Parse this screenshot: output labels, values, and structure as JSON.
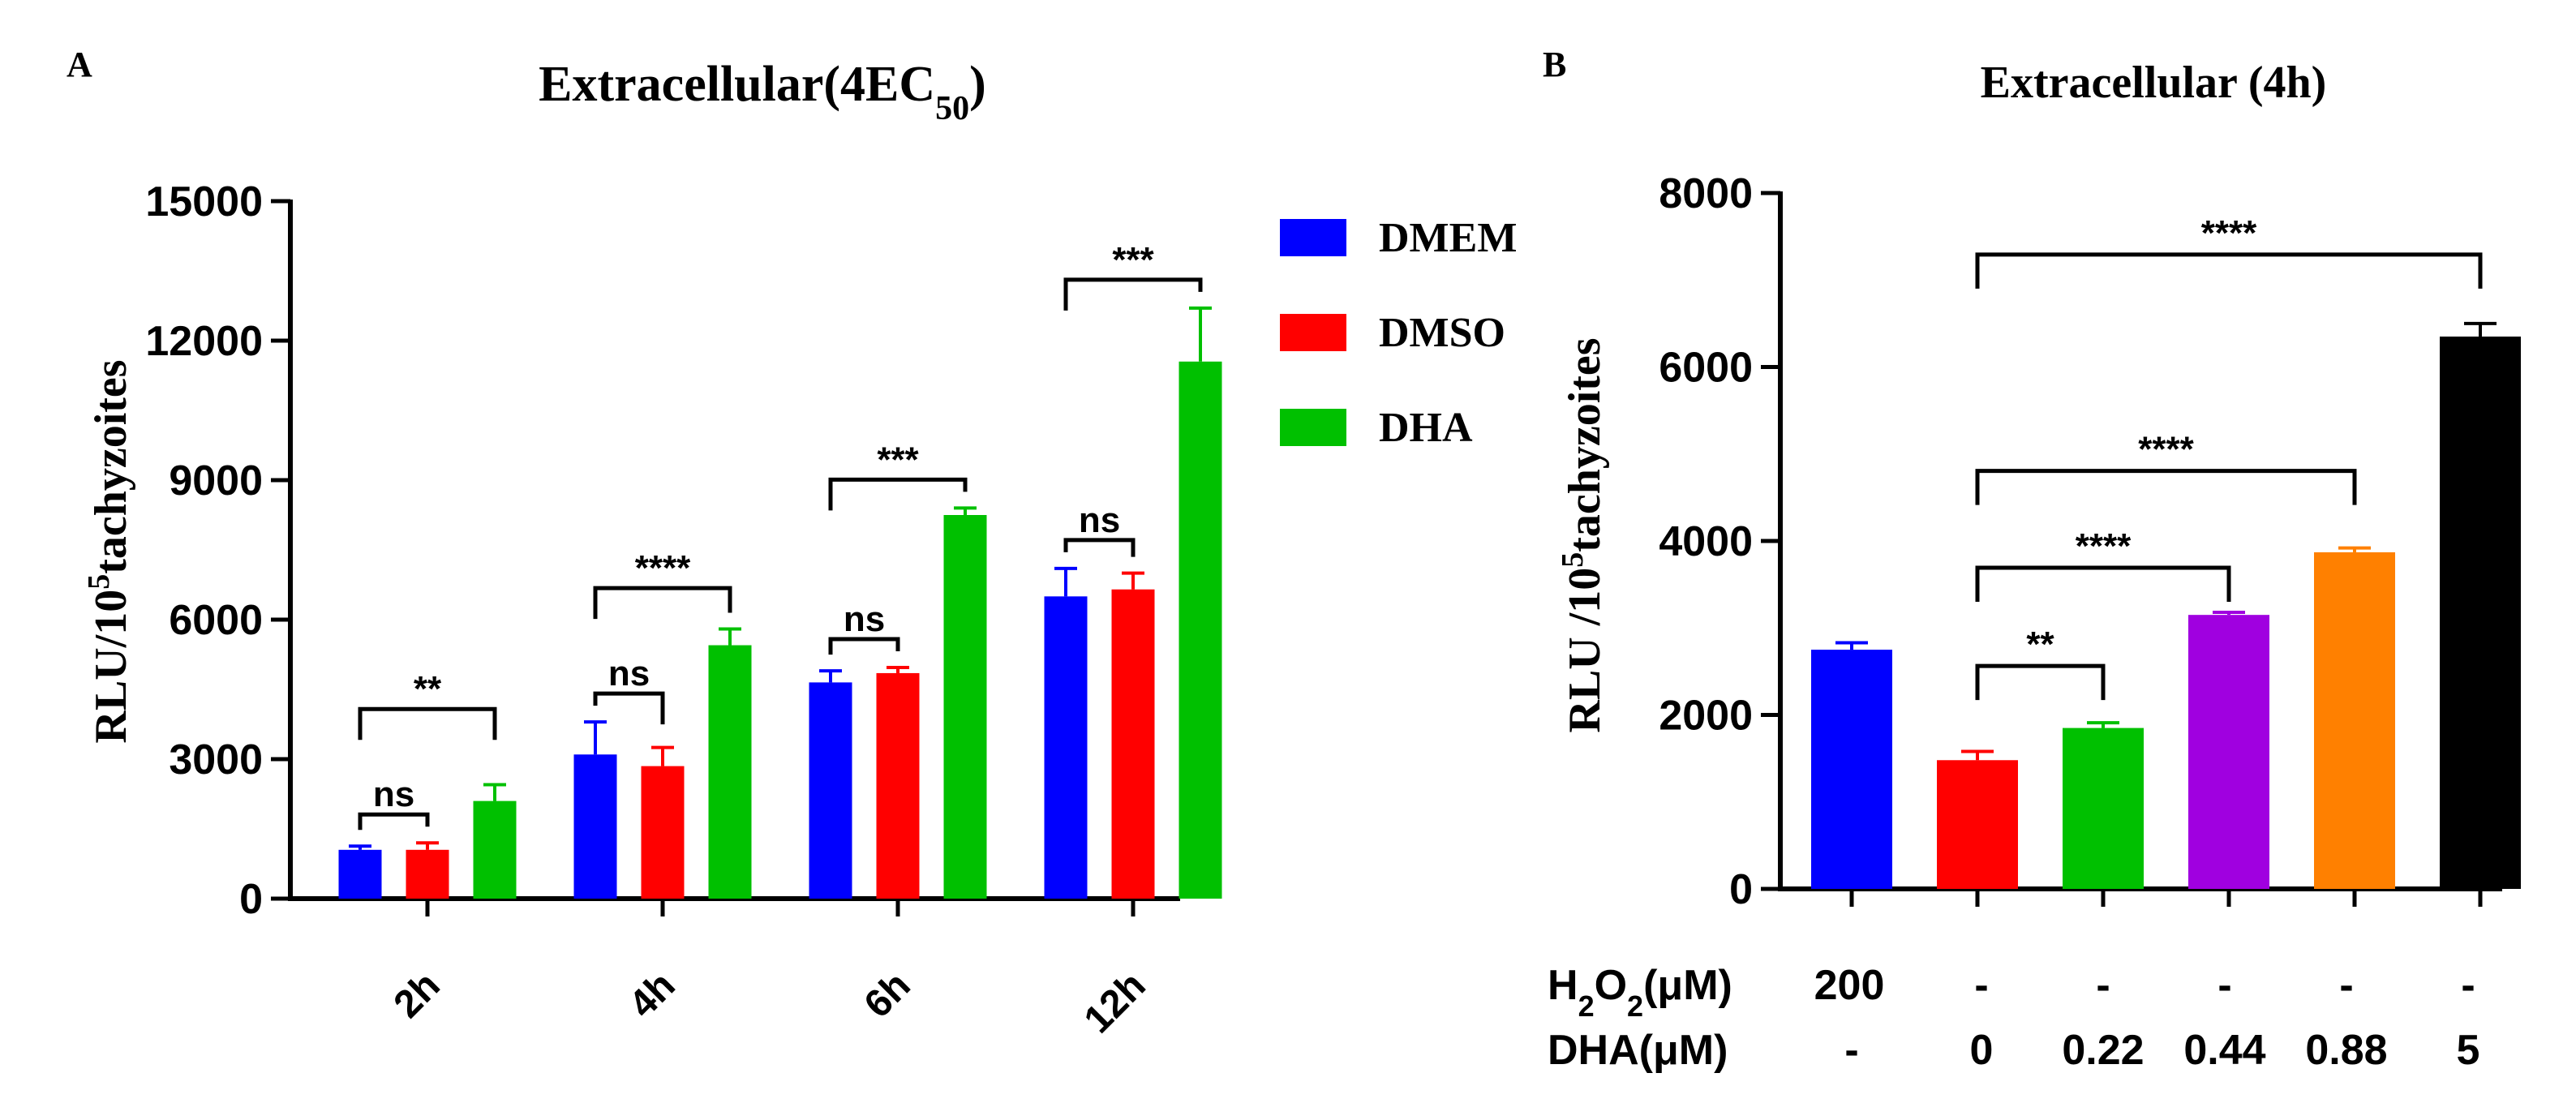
{
  "chart_data": [
    {
      "panel": "A",
      "type": "bar",
      "title": "Extracellular(4EC",
      "title_sub": "50",
      "title_close": ")",
      "ylabel": "RLU/10",
      "ylabel_sup": "5",
      "ylabel_tail": "tachyzoites",
      "xlabel": "",
      "ylim": [
        0,
        15000
      ],
      "yticks": [
        "0",
        "3000",
        "6000",
        "9000",
        "12000",
        "15000"
      ],
      "categories": [
        "2h",
        "4h",
        "6h",
        "12h"
      ],
      "series": [
        {
          "name": "DMEM",
          "color": "#0000ff",
          "values": [
            1050,
            3100,
            4650,
            6500
          ],
          "errors": [
            80,
            700,
            250,
            600
          ]
        },
        {
          "name": "DMSO",
          "color": "#ff0000",
          "values": [
            1050,
            2850,
            4850,
            6650
          ],
          "errors": [
            150,
            400,
            120,
            350
          ]
        },
        {
          "name": "DHA",
          "color": "#00c000",
          "values": [
            2100,
            5450,
            8250,
            11550
          ],
          "errors": [
            350,
            350,
            150,
            1150
          ]
        }
      ],
      "significance": [
        {
          "group": 0,
          "from": 0,
          "to": 1,
          "label": "ns"
        },
        {
          "group": 0,
          "from": 0,
          "to": 2,
          "label": "**"
        },
        {
          "group": 1,
          "from": 0,
          "to": 1,
          "label": "ns"
        },
        {
          "group": 1,
          "from": 0,
          "to": 2,
          "label": "****"
        },
        {
          "group": 2,
          "from": 0,
          "to": 1,
          "label": "ns"
        },
        {
          "group": 2,
          "from": 0,
          "to": 2,
          "label": "***"
        },
        {
          "group": 3,
          "from": 0,
          "to": 1,
          "label": "ns"
        },
        {
          "group": 3,
          "from": 0,
          "to": 2,
          "label": "***"
        }
      ],
      "legend_position": "top-right"
    },
    {
      "panel": "B",
      "type": "bar",
      "title": "Extracellular (4h)",
      "ylabel": "RLU /10",
      "ylabel_sup": "5",
      "ylabel_tail": "tachyzoites",
      "ylim": [
        0,
        8000
      ],
      "yticks": [
        "0",
        "2000",
        "4000",
        "6000",
        "8000"
      ],
      "bars": [
        {
          "value": 2750,
          "error": 80,
          "color": "#0000ff"
        },
        {
          "value": 1480,
          "error": 100,
          "color": "#ff0000"
        },
        {
          "value": 1850,
          "error": 60,
          "color": "#00c000"
        },
        {
          "value": 3150,
          "error": 30,
          "color": "#a000e0"
        },
        {
          "value": 3870,
          "error": 50,
          "color": "#ff8000"
        },
        {
          "value": 6350,
          "error": 150,
          "color": "#000000"
        }
      ],
      "significance": [
        {
          "from": 1,
          "to": 2,
          "label": "**"
        },
        {
          "from": 1,
          "to": 3,
          "label": "****"
        },
        {
          "from": 1,
          "to": 4,
          "label": "****"
        },
        {
          "from": 1,
          "to": 5,
          "label": "****"
        }
      ],
      "table_rows": [
        {
          "label_main": "H",
          "label_sub1": "2",
          "label_mid": "O",
          "label_sub2": "2",
          "label_tail": "(μM)",
          "values": [
            "200",
            "-",
            "-",
            "-",
            "-",
            "-"
          ]
        },
        {
          "label_main": "DHA(μM)",
          "values": [
            "-",
            "0",
            "0.22",
            "0.44",
            "0.88",
            "5"
          ]
        }
      ]
    }
  ]
}
